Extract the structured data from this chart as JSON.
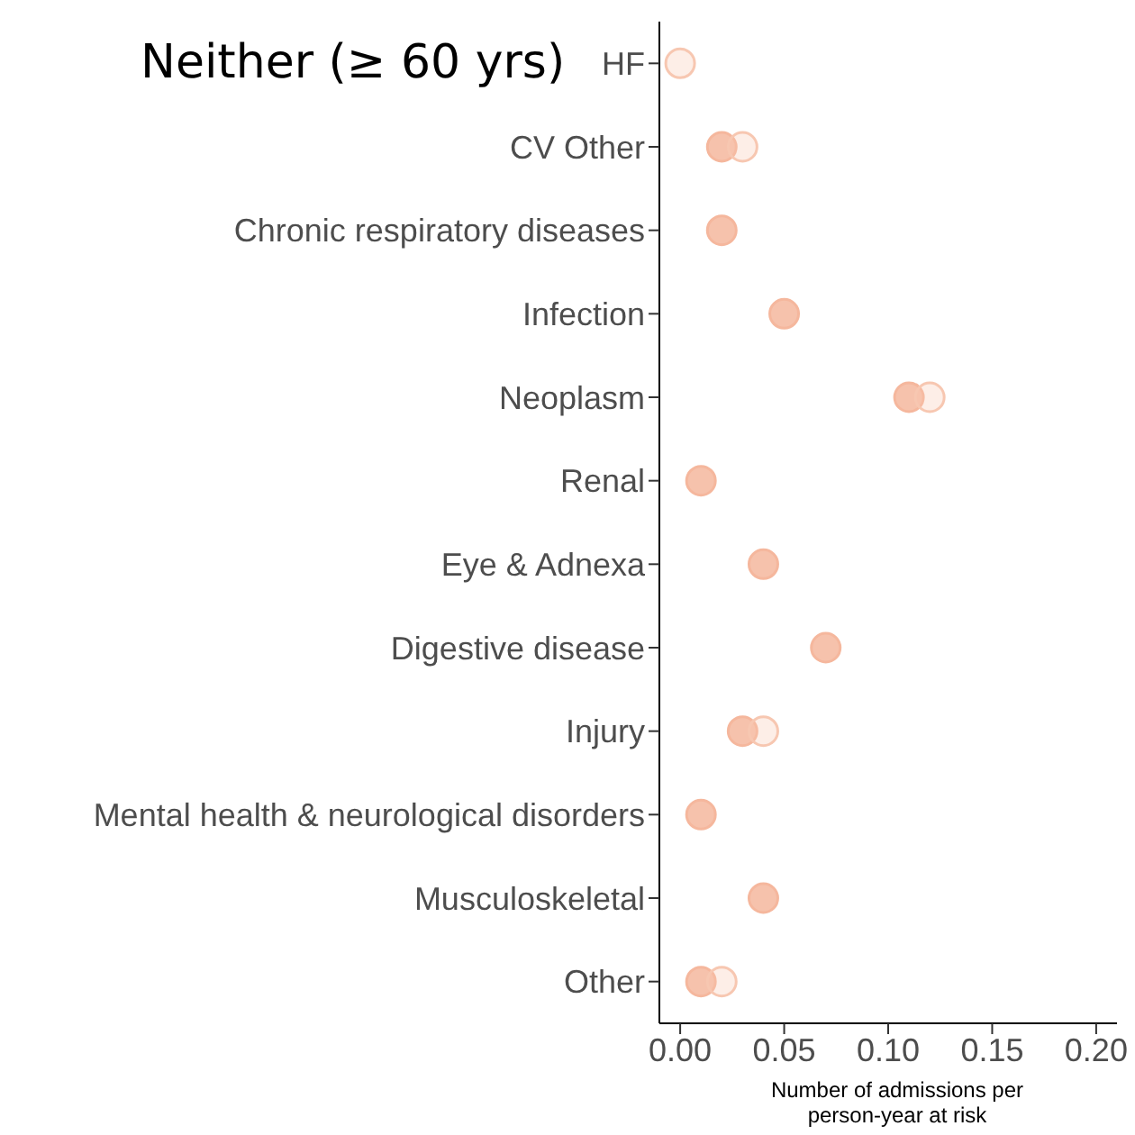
{
  "chart_data": {
    "type": "scatter",
    "title": "Neither (≥ 60 yrs)",
    "xlabel": "Number of admissions per person-year at risk",
    "orientation": "horizontal",
    "categories": [
      "HF",
      "CV Other",
      "Chronic respiratory diseases",
      "Infection",
      "Neoplasm",
      "Renal",
      "Eye & Adnexa",
      "Digestive disease",
      "Injury",
      "Mental health & neurological disorders",
      "Musculoskeletal",
      "Other"
    ],
    "series": [
      {
        "color": "#f5b79d",
        "values": [
          null,
          0.02,
          0.02,
          0.05,
          0.11,
          0.01,
          0.04,
          0.07,
          0.03,
          0.01,
          0.04,
          0.01
        ]
      },
      {
        "color": "#f7c7b1",
        "values": [
          0.0,
          0.03,
          null,
          null,
          0.12,
          null,
          null,
          null,
          0.04,
          null,
          null,
          0.02
        ]
      }
    ],
    "xlim": [
      -0.01,
      0.21
    ],
    "xticks": [
      {
        "value": 0,
        "label": "0.00"
      },
      {
        "value": 0.05,
        "label": "0.05"
      },
      {
        "value": 0.1,
        "label": "0.10"
      },
      {
        "value": 0.15,
        "label": "0.15"
      },
      {
        "value": 0.2,
        "label": "0.20"
      }
    ],
    "grid": false,
    "legend": false,
    "marker": "circle"
  }
}
